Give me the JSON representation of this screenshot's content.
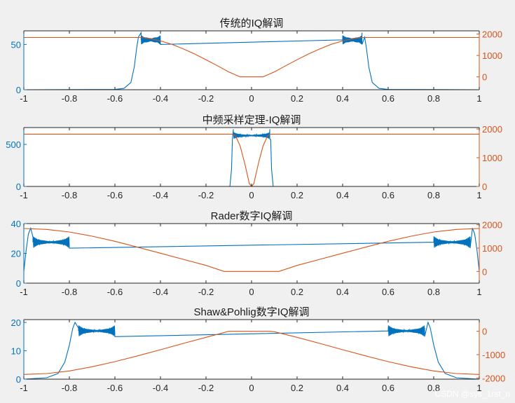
{
  "watermark": "CSDN @sys_1rst_n",
  "colors": {
    "left_axis": "#0072BD",
    "right_axis": "#D95319",
    "axes_bg": "#ffffff",
    "figure_bg": "#f0f0f0",
    "axis_line": "#262626"
  },
  "chart_data": [
    {
      "type": "line",
      "title": "传统的IQ解调",
      "xlim": [
        -1,
        1
      ],
      "xticks": [
        "-1",
        "-0.8",
        "-0.6",
        "-0.4",
        "-0.2",
        "0",
        "0.2",
        "0.4",
        "0.6",
        "0.8",
        "1"
      ],
      "ylim_left": [
        0,
        65
      ],
      "yticks_left": [
        "0",
        "50"
      ],
      "ylim_right": [
        -600,
        2150
      ],
      "yticks_right": [
        "0",
        "1000",
        "2000"
      ],
      "series": [
        {
          "axis": "left",
          "color": "#0072BD",
          "kind": "amplitude",
          "points": [
            [
              -1,
              0
            ],
            [
              -0.6,
              0.3
            ],
            [
              -0.56,
              1.5
            ],
            [
              -0.53,
              8
            ],
            [
              -0.515,
              25
            ],
            [
              -0.505,
              45
            ],
            [
              -0.497,
              58
            ],
            [
              -0.485,
              63
            ],
            [
              -0.47,
              58
            ],
            [
              -0.45,
              55
            ],
            [
              0.45,
              55
            ],
            [
              0.47,
              58
            ],
            [
              0.485,
              63
            ],
            [
              0.497,
              58
            ],
            [
              0.505,
              45
            ],
            [
              0.515,
              25
            ],
            [
              0.53,
              8
            ],
            [
              0.56,
              1.5
            ],
            [
              0.6,
              0.3
            ],
            [
              1,
              0
            ]
          ],
          "ripple": [
            [
              -0.485,
              -0.4,
              5
            ],
            [
              0.4,
              0.485,
              5
            ]
          ],
          "base": 55
        },
        {
          "axis": "right",
          "color": "#D95319",
          "kind": "line",
          "points": [
            [
              -1,
              1840
            ],
            [
              -0.5,
              1840
            ],
            [
              -0.49,
              1840
            ],
            [
              -0.45,
              1800
            ],
            [
              -0.4,
              1680
            ],
            [
              -0.35,
              1520
            ],
            [
              -0.3,
              1310
            ],
            [
              -0.25,
              1070
            ],
            [
              -0.2,
              800
            ],
            [
              -0.15,
              520
            ],
            [
              -0.1,
              230
            ],
            [
              -0.05,
              0
            ],
            [
              0.05,
              0
            ],
            [
              0.1,
              230
            ],
            [
              0.15,
              520
            ],
            [
              0.2,
              800
            ],
            [
              0.25,
              1070
            ],
            [
              0.3,
              1310
            ],
            [
              0.35,
              1520
            ],
            [
              0.4,
              1680
            ],
            [
              0.45,
              1800
            ],
            [
              0.49,
              1840
            ],
            [
              0.5,
              1840
            ],
            [
              1,
              1840
            ]
          ]
        }
      ]
    },
    {
      "type": "line",
      "title": "中频采样定理-IQ解调",
      "xlim": [
        -1,
        1
      ],
      "xticks": [
        "-1",
        "-0.8",
        "-0.6",
        "-0.4",
        "-0.2",
        "0",
        "0.2",
        "0.4",
        "0.6",
        "0.8",
        "1"
      ],
      "ylim_left": [
        0,
        700
      ],
      "yticks_left": [
        "0",
        "500"
      ],
      "ylim_right": [
        0,
        2050
      ],
      "yticks_right": [
        "0",
        "1000",
        "2000"
      ],
      "series": [
        {
          "axis": "left",
          "color": "#0072BD",
          "kind": "amplitude",
          "points": [
            [
              -1,
              0
            ],
            [
              -0.095,
              0
            ],
            [
              -0.088,
              200
            ],
            [
              -0.084,
              560
            ],
            [
              -0.08,
              680
            ],
            [
              -0.07,
              610
            ],
            [
              0.07,
              610
            ],
            [
              0.08,
              680
            ],
            [
              0.084,
              560
            ],
            [
              0.088,
              200
            ],
            [
              0.095,
              0
            ],
            [
              1,
              0
            ]
          ],
          "ripple": [
            [
              -0.08,
              0.08,
              40
            ]
          ],
          "base": 605
        },
        {
          "axis": "right",
          "color": "#D95319",
          "kind": "line",
          "points": [
            [
              -1,
              1820
            ],
            [
              -0.085,
              1820
            ],
            [
              -0.07,
              1760
            ],
            [
              -0.05,
              1400
            ],
            [
              -0.03,
              800
            ],
            [
              -0.01,
              100
            ],
            [
              0,
              0
            ],
            [
              0.01,
              100
            ],
            [
              0.03,
              800
            ],
            [
              0.05,
              1400
            ],
            [
              0.07,
              1760
            ],
            [
              0.085,
              1820
            ],
            [
              1,
              1820
            ]
          ]
        }
      ]
    },
    {
      "type": "line",
      "title": "Rader数字IQ解调",
      "xlim": [
        -1,
        1
      ],
      "xticks": [
        "-1",
        "-0.8",
        "-0.6",
        "-0.4",
        "-0.2",
        "0",
        "0.2",
        "0.4",
        "0.6",
        "0.8",
        "1"
      ],
      "ylim_left": [
        0,
        40
      ],
      "yticks_left": [
        "0",
        "20",
        "40"
      ],
      "ylim_right": [
        -500,
        2050
      ],
      "yticks_right": [
        "0",
        "1000",
        "2000"
      ],
      "series": [
        {
          "axis": "left",
          "color": "#0072BD",
          "kind": "amplitude",
          "points": [
            [
              -1,
              8
            ],
            [
              -0.99,
              22
            ],
            [
              -0.98,
              33
            ],
            [
              -0.97,
              37
            ],
            [
              -0.96,
              31
            ],
            [
              -0.95,
              27
            ],
            [
              0.95,
              27
            ],
            [
              0.96,
              31
            ],
            [
              0.97,
              37
            ],
            [
              0.98,
              33
            ],
            [
              0.99,
              22
            ],
            [
              1,
              8
            ]
          ],
          "ripple": [
            [
              -0.96,
              -0.8,
              4
            ],
            [
              0.8,
              0.96,
              4
            ]
          ],
          "base": 27.5
        },
        {
          "axis": "right",
          "color": "#D95319",
          "kind": "line",
          "points": [
            [
              -1,
              1840
            ],
            [
              -0.9,
              1800
            ],
            [
              -0.8,
              1690
            ],
            [
              -0.7,
              1510
            ],
            [
              -0.6,
              1290
            ],
            [
              -0.5,
              1040
            ],
            [
              -0.4,
              780
            ],
            [
              -0.3,
              520
            ],
            [
              -0.2,
              260
            ],
            [
              -0.12,
              0
            ],
            [
              0,
              0
            ],
            [
              0.12,
              0
            ],
            [
              0.2,
              260
            ],
            [
              0.3,
              520
            ],
            [
              0.4,
              780
            ],
            [
              0.5,
              1040
            ],
            [
              0.6,
              1290
            ],
            [
              0.7,
              1510
            ],
            [
              0.8,
              1690
            ],
            [
              0.9,
              1800
            ],
            [
              1,
              1840
            ]
          ]
        }
      ]
    },
    {
      "type": "line",
      "title": "Shaw&Pohlig数字IQ解调",
      "xlim": [
        -1,
        1
      ],
      "xticks": [
        "-1",
        "-0.8",
        "-0.6",
        "-0.4",
        "-0.2",
        "0",
        "0.2",
        "0.4",
        "0.6",
        "0.8",
        "1"
      ],
      "ylim_left": [
        0,
        21
      ],
      "yticks_left": [
        "0",
        "10",
        "20"
      ],
      "ylim_right": [
        -2050,
        500
      ],
      "yticks_right": [
        "-2000",
        "-1000",
        "0"
      ],
      "series": [
        {
          "axis": "left",
          "color": "#0072BD",
          "kind": "amplitude",
          "points": [
            [
              -1,
              0
            ],
            [
              -0.9,
              0.5
            ],
            [
              -0.85,
              2
            ],
            [
              -0.82,
              6
            ],
            [
              -0.8,
              12
            ],
            [
              -0.785,
              18
            ],
            [
              -0.775,
              20
            ],
            [
              -0.76,
              18
            ],
            [
              -0.74,
              17
            ],
            [
              0.74,
              17
            ],
            [
              0.76,
              18
            ],
            [
              0.775,
              20
            ],
            [
              0.785,
              18
            ],
            [
              0.8,
              12
            ],
            [
              0.82,
              6
            ],
            [
              0.85,
              2
            ],
            [
              0.9,
              0.5
            ],
            [
              1,
              0
            ]
          ],
          "ripple": [
            [
              -0.76,
              -0.6,
              2
            ],
            [
              0.6,
              0.76,
              2
            ]
          ],
          "base": 17
        },
        {
          "axis": "right",
          "color": "#D95319",
          "kind": "line",
          "points": [
            [
              -1,
              -1850
            ],
            [
              -0.9,
              -1810
            ],
            [
              -0.8,
              -1700
            ],
            [
              -0.7,
              -1520
            ],
            [
              -0.6,
              -1300
            ],
            [
              -0.5,
              -1050
            ],
            [
              -0.4,
              -790
            ],
            [
              -0.3,
              -520
            ],
            [
              -0.2,
              -260
            ],
            [
              -0.1,
              0
            ],
            [
              -0.08,
              0
            ],
            [
              0.08,
              0
            ],
            [
              0.1,
              -20
            ],
            [
              0.2,
              -260
            ],
            [
              0.3,
              -520
            ],
            [
              0.4,
              -790
            ],
            [
              0.5,
              -1050
            ],
            [
              0.6,
              -1300
            ],
            [
              0.7,
              -1520
            ],
            [
              0.8,
              -1700
            ],
            [
              0.9,
              -1810
            ],
            [
              1,
              -1850
            ]
          ]
        }
      ]
    }
  ]
}
